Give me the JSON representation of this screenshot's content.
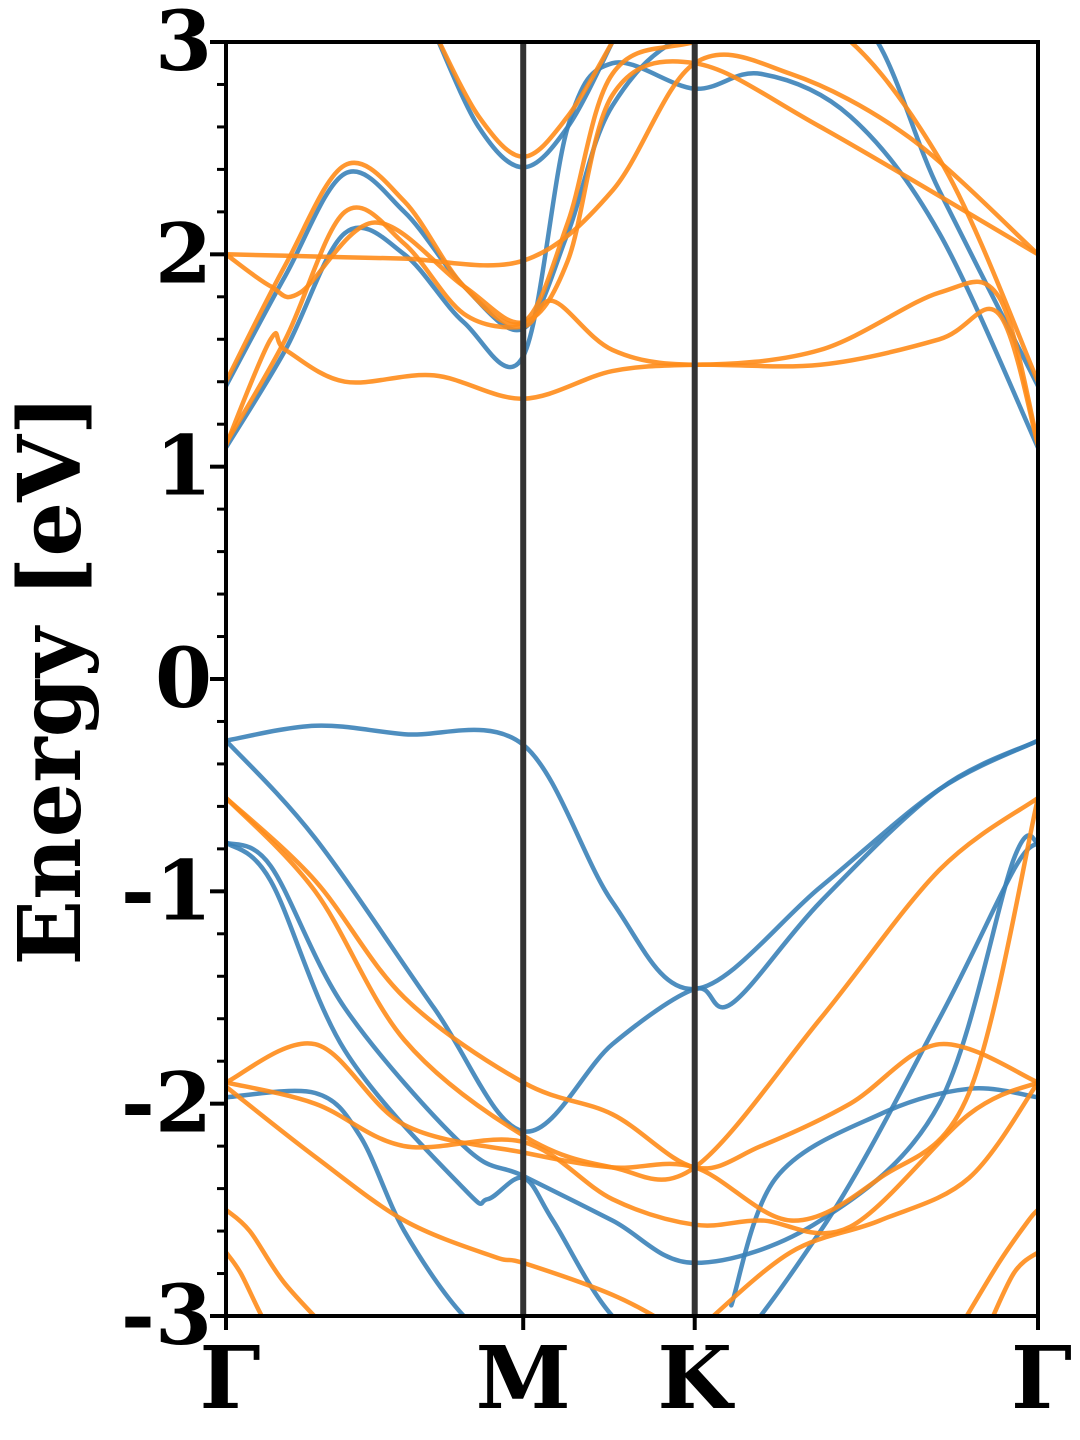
{
  "chart_data": {
    "type": "line",
    "title": "",
    "xlabel": "",
    "ylabel": "Energy [eV]",
    "ylim": [
      -3,
      3
    ],
    "yticks": [
      "-3",
      "-2",
      "-1",
      "0",
      "1",
      "2",
      "3"
    ],
    "xticks": [
      {
        "label": "Γ",
        "k": 0.0
      },
      {
        "label": "M",
        "k": 1.0
      },
      {
        "label": "K",
        "k": 1.577
      },
      {
        "label": "Γ",
        "k": 2.732
      }
    ],
    "xlim": [
      0,
      2.732
    ],
    "grid": false,
    "colors": {
      "blue": "#3b82b8",
      "orange": "#ff8c1a",
      "divider": "#333333"
    },
    "series": [
      {
        "color": "#3b82b8",
        "x": [
          0,
          0.3,
          0.6,
          1.0,
          1.3,
          1.577,
          2.0,
          2.4,
          2.732
        ],
        "y": [
          -0.29,
          -0.22,
          -0.26,
          -0.31,
          -1.05,
          -1.46,
          -0.98,
          -0.52,
          -0.29
        ]
      },
      {
        "color": "#3b82b8",
        "x": [
          0,
          0.3,
          0.7,
          1.0,
          1.3,
          1.577,
          1.7,
          2.0,
          2.4,
          2.732
        ],
        "y": [
          -0.29,
          -0.75,
          -1.55,
          -2.13,
          -1.72,
          -1.46,
          -1.53,
          -1.05,
          -0.52,
          -0.29
        ]
      },
      {
        "color": "#3b82b8",
        "x": [
          0,
          0.15,
          0.4,
          0.8,
          1.0,
          1.3,
          1.577,
          2.0,
          2.4,
          2.65,
          2.732
        ],
        "y": [
          -0.77,
          -0.88,
          -1.55,
          -2.2,
          -2.34,
          -2.55,
          -2.75,
          -2.55,
          -2.0,
          -0.85,
          -0.77
        ]
      },
      {
        "color": "#3b82b8",
        "x": [
          0,
          0.15,
          0.4,
          0.8,
          0.88,
          1.0,
          1.1,
          1.3,
          1.577,
          2.0,
          2.4,
          2.65,
          2.732
        ],
        "y": [
          -0.77,
          -0.95,
          -1.75,
          -2.4,
          -2.45,
          -2.35,
          -2.55,
          -3.0,
          -3.3,
          -2.6,
          -1.6,
          -0.9,
          -0.77
        ]
      },
      {
        "color": "#3b82b8",
        "x": [
          0,
          0.3,
          0.45,
          0.6,
          0.8,
          1.0
        ],
        "y": [
          -1.97,
          -1.95,
          -2.15,
          -2.6,
          -3.0,
          -3.2
        ]
      },
      {
        "color": "#3b82b8",
        "x": [
          1.7,
          1.85,
          2.2,
          2.5,
          2.732
        ],
        "y": [
          -2.95,
          -2.35,
          -2.05,
          -1.93,
          -1.97
        ]
      },
      {
        "color": "#3b82b8",
        "x": [
          0,
          0.2,
          0.4,
          0.6,
          0.8,
          1.0,
          1.15,
          1.3,
          1.577,
          1.8,
          2.1,
          2.4,
          2.732
        ],
        "y": [
          1.09,
          1.55,
          2.1,
          2.0,
          1.68,
          1.52,
          2.6,
          2.9,
          2.78,
          2.85,
          2.65,
          2.1,
          1.09
        ]
      },
      {
        "color": "#3b82b8",
        "x": [
          0,
          0.2,
          0.4,
          0.6,
          0.8,
          1.0,
          1.15,
          1.3,
          1.577,
          2.1,
          2.4,
          2.732
        ],
        "y": [
          1.38,
          1.9,
          2.38,
          2.2,
          1.85,
          1.65,
          2.1,
          2.7,
          3.05,
          3.15,
          2.3,
          1.38
        ]
      },
      {
        "color": "#3b82b8",
        "x": [
          0.7,
          0.85,
          1.0,
          1.15,
          1.3
        ],
        "y": [
          3.05,
          2.6,
          2.41,
          2.6,
          3.0
        ]
      },
      {
        "color": "#ff8c1a",
        "x": [
          0,
          0.3,
          0.6,
          1.0,
          1.3,
          1.577,
          1.9,
          2.3,
          2.732
        ],
        "y": [
          2.0,
          1.99,
          1.98,
          1.97,
          2.3,
          2.9,
          2.85,
          2.55,
          2.0
        ]
      },
      {
        "color": "#ff8c1a",
        "x": [
          0,
          0.15,
          0.25,
          0.5,
          0.8,
          1.0,
          1.15,
          1.3,
          1.577,
          2.0,
          2.732
        ],
        "y": [
          2.0,
          1.85,
          1.82,
          2.15,
          1.85,
          1.68,
          1.97,
          2.75,
          2.9,
          2.6,
          2.0
        ]
      },
      {
        "color": "#ff8c1a",
        "x": [
          0,
          0.2,
          0.4,
          0.6,
          0.8,
          1.0,
          1.1,
          1.3,
          1.577,
          2.0,
          2.4,
          2.6,
          2.732
        ],
        "y": [
          1.11,
          1.6,
          2.2,
          2.05,
          1.72,
          1.66,
          1.78,
          1.55,
          1.48,
          1.55,
          1.82,
          1.8,
          1.11
        ]
      },
      {
        "color": "#ff8c1a",
        "x": [
          0,
          0.2,
          0.4,
          0.6,
          0.8,
          1.0,
          1.15,
          1.3,
          1.577,
          2.0,
          2.4,
          2.732
        ],
        "y": [
          1.4,
          1.95,
          2.42,
          2.25,
          1.85,
          1.68,
          2.15,
          2.85,
          3.0,
          3.1,
          2.45,
          1.4
        ]
      },
      {
        "color": "#ff8c1a",
        "x": [
          0,
          0.15,
          0.2,
          0.4,
          0.7,
          1.0,
          1.3,
          1.577,
          2.0,
          2.4,
          2.6,
          2.732
        ],
        "y": [
          1.1,
          1.6,
          1.55,
          1.4,
          1.43,
          1.32,
          1.45,
          1.48,
          1.48,
          1.6,
          1.72,
          1.1
        ]
      },
      {
        "color": "#ff8c1a",
        "x": [
          0.7,
          0.85,
          1.0,
          1.15,
          1.3
        ],
        "y": [
          3.05,
          2.65,
          2.46,
          2.65,
          3.0
        ]
      },
      {
        "color": "#ff8c1a",
        "x": [
          0,
          0.3,
          0.6,
          1.0,
          1.3,
          1.577,
          1.8,
          2.1,
          2.4,
          2.732
        ],
        "y": [
          -0.56,
          -0.95,
          -1.5,
          -1.9,
          -2.05,
          -2.3,
          -2.2,
          -2.0,
          -1.72,
          -1.9
        ]
      },
      {
        "color": "#ff8c1a",
        "x": [
          0,
          0.3,
          0.6,
          1.0,
          1.3,
          1.577,
          2.0,
          2.4,
          2.732
        ],
        "y": [
          -0.56,
          -1.0,
          -1.7,
          -2.15,
          -2.3,
          -2.3,
          -1.6,
          -0.9,
          -0.56
        ]
      },
      {
        "color": "#ff8c1a",
        "x": [
          0,
          0.3,
          0.6,
          1.0,
          1.3,
          1.577,
          1.9,
          2.2,
          2.5,
          2.732
        ],
        "y": [
          -1.9,
          -1.72,
          -2.1,
          -2.23,
          -2.3,
          -2.3,
          -2.55,
          -2.35,
          -1.95,
          -0.56
        ]
      },
      {
        "color": "#ff8c1a",
        "x": [
          0,
          0.3,
          0.6,
          1.0,
          1.3,
          1.577,
          1.8,
          2.1,
          2.5,
          2.732
        ],
        "y": [
          -1.9,
          -2.0,
          -2.2,
          -2.18,
          -2.45,
          -2.57,
          -2.55,
          -2.58,
          -2.05,
          -1.9
        ]
      },
      {
        "color": "#ff8c1a",
        "x": [
          0,
          0.3,
          0.6,
          0.9,
          1.0,
          1.3,
          1.5,
          1.6
        ],
        "y": [
          -1.92,
          -2.25,
          -2.55,
          -2.72,
          -2.75,
          -2.9,
          -3.05,
          -3.15
        ]
      },
      {
        "color": "#ff8c1a",
        "x": [
          1.6,
          1.9,
          2.2,
          2.5,
          2.732
        ],
        "y": [
          -3.05,
          -2.7,
          -2.55,
          -2.35,
          -1.9
        ]
      },
      {
        "color": "#ff8c1a",
        "x": [
          0,
          0.08,
          0.2,
          0.4
        ],
        "y": [
          -2.5,
          -2.6,
          -2.85,
          -3.15
        ]
      },
      {
        "color": "#ff8c1a",
        "x": [
          0,
          0.05,
          0.12,
          0.2
        ],
        "y": [
          -2.7,
          -2.8,
          -3.0,
          -3.2
        ]
      },
      {
        "color": "#ff8c1a",
        "x": [
          2.45,
          2.6,
          2.7,
          2.732
        ],
        "y": [
          -3.1,
          -2.75,
          -2.55,
          -2.5
        ]
      },
      {
        "color": "#ff8c1a",
        "x": [
          2.55,
          2.65,
          2.732
        ],
        "y": [
          -3.1,
          -2.8,
          -2.7
        ]
      }
    ]
  }
}
